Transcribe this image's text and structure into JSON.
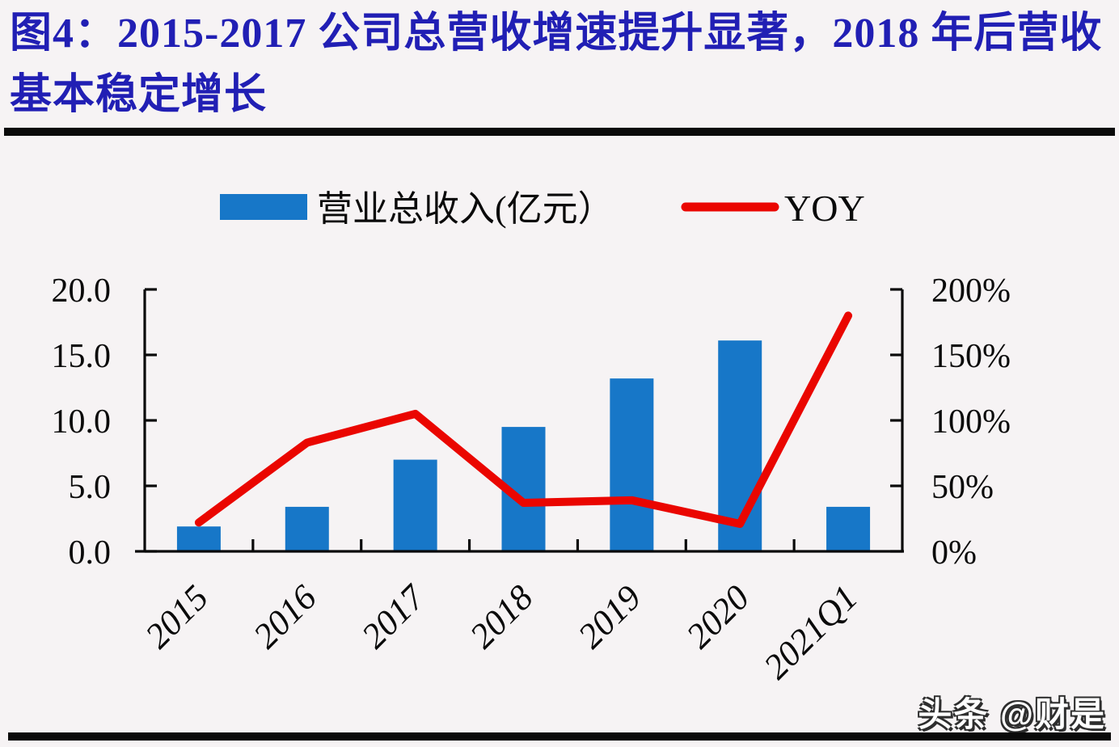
{
  "title": "图4：2015-2017 公司总营收增速提升显著，2018 年后营收基本稳定增长",
  "watermark": "头条 @财是",
  "colors": {
    "bar": "#1777c8",
    "line": "#ea0600",
    "title_text": "#211fb4",
    "axis": "#0a0a0a",
    "background": "#f6f3f4",
    "watermark_fill": "#ffffff"
  },
  "legend": {
    "bar_label": "营业总收入(亿元）",
    "line_label": "YOY"
  },
  "chart_data": {
    "type": "bar+line",
    "categories": [
      "2015",
      "2016",
      "2017",
      "2018",
      "2019",
      "2020",
      "2021Q1"
    ],
    "series": [
      {
        "name": "营业总收入(亿元）",
        "type": "bar",
        "axis": "left",
        "values": [
          1.9,
          3.4,
          7.0,
          9.5,
          13.2,
          16.1,
          3.4
        ]
      },
      {
        "name": "YOY",
        "type": "line",
        "axis": "right",
        "unit": "%",
        "values": [
          22,
          83,
          105,
          37,
          39,
          21,
          180
        ]
      }
    ],
    "left_axis": {
      "labels": [
        "0.0",
        "5.0",
        "10.0",
        "15.0",
        "20.0"
      ],
      "min": 0,
      "max": 20
    },
    "right_axis": {
      "labels": [
        "0%",
        "50%",
        "100%",
        "150%",
        "200%"
      ],
      "min": 0,
      "max": 200
    },
    "grid": false,
    "legend_position": "top-center"
  }
}
